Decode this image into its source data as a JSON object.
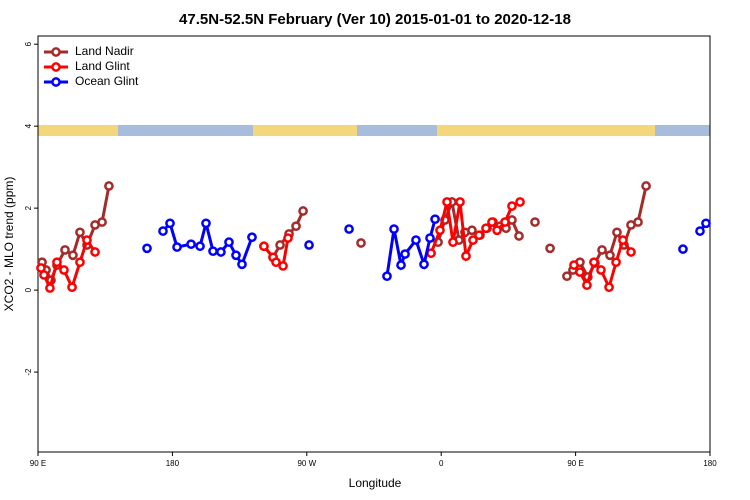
{
  "chart_data": {
    "type": "line",
    "title": "47.5N-52.5N February (Ver 10)   2015-01-01 to 2020-12-18",
    "x_label": "Longitude",
    "y_label": "XCO2 - MLO trend (ppm)",
    "xlim": [
      90,
      540
    ],
    "ylim": [
      -3.95,
      6.2
    ],
    "xticks": [
      {
        "value": 90,
        "label": "90 E"
      },
      {
        "value": 180,
        "label": "180"
      },
      {
        "value": 270,
        "label": "90 W"
      },
      {
        "value": 360,
        "label": "0"
      },
      {
        "value": 450,
        "label": "90 E"
      },
      {
        "value": 540,
        "label": "180"
      }
    ],
    "yticks": [
      -2,
      0,
      2,
      4,
      6
    ],
    "legend": "top-left",
    "series": [
      {
        "name": "Land Nadir",
        "color": "#a52a2a",
        "x": [
          92.7,
          95.4,
          98.7,
          102.7,
          108.1,
          113.4,
          118.1,
          122.8,
          128.2,
          132.9,
          137.5,
          null,
          241.3,
          247.4,
          252.1,
          258.1,
          262.8,
          267.5,
          null,
          306.3,
          null,
          357.9,
          362.5,
          367.2,
          371.9,
          375.9,
          380.6,
          386,
          390.7,
          394.7,
          399.4,
          403.4,
          407.4,
          412.1,
          null,
          422.8,
          null,
          432.9,
          null,
          444.2,
          448.2,
          452.9,
          458.2,
          463,
          467.7,
          473,
          477.7,
          482.4,
          487.1,
          491.8,
          497.2
        ],
        "values": [
          0.68,
          0.49,
          0.24,
          0.61,
          0.98,
          0.85,
          1.41,
          1.1,
          1.59,
          1.66,
          2.54,
          null,
          1.07,
          0.8,
          1.1,
          1.37,
          1.56,
          1.93,
          null,
          1.15,
          null,
          1.17,
          1.71,
          2.15,
          1.22,
          1.41,
          1.46,
          1.34,
          1.51,
          1.66,
          1.56,
          1.51,
          1.71,
          1.32,
          null,
          1.66,
          null,
          1.02,
          null,
          0.34,
          0.49,
          0.68,
          0.32,
          0.66,
          0.98,
          0.85,
          1.41,
          1.1,
          1.59,
          1.66,
          2.54
        ]
      },
      {
        "name": "Land Glint",
        "color": "#ff0000",
        "x": [
          92,
          94,
          98,
          102.7,
          107.4,
          112.8,
          118.1,
          122.8,
          128.2,
          null,
          241.3,
          247.4,
          249.4,
          254.1,
          257.4,
          null,
          353.2,
          359.2,
          363.9,
          367.9,
          372.6,
          376.6,
          381.3,
          385.3,
          390,
          394,
          397.4,
          402.7,
          407.4,
          412.8,
          null,
          448.9,
          452.9,
          457.6,
          462.3,
          467,
          472.4,
          477.1,
          481.7,
          487.1
        ],
        "values": [
          0.54,
          0.37,
          0.05,
          0.68,
          0.49,
          0.07,
          0.68,
          1.22,
          0.93,
          null,
          1.07,
          0.8,
          0.68,
          0.59,
          1.27,
          null,
          0.9,
          1.46,
          2.15,
          1.17,
          2.15,
          0.83,
          1.22,
          1.34,
          1.51,
          1.66,
          1.46,
          1.66,
          2.05,
          2.15,
          null,
          0.61,
          0.44,
          0.12,
          0.68,
          0.49,
          0.07,
          0.68,
          1.22,
          0.93
        ]
      },
      {
        "name": "Ocean Glint",
        "color": "#0000ff",
        "x": [
          163,
          null,
          173.7,
          178.4,
          183.1,
          192.5,
          198.5,
          202.5,
          207.2,
          212.5,
          217.9,
          222.6,
          226.6,
          233.3,
          null,
          271.5,
          null,
          298.3,
          null,
          323.7,
          328.4,
          333.1,
          335.8,
          343.1,
          348.5,
          352.5,
          355.9,
          null,
          521.9,
          null,
          533.3,
          537.3
        ],
        "values": [
          1.02,
          null,
          1.44,
          1.63,
          1.05,
          1.12,
          1.07,
          1.63,
          0.95,
          0.93,
          1.17,
          0.85,
          0.63,
          1.29,
          null,
          1.1,
          null,
          1.49,
          null,
          0.34,
          1.49,
          0.61,
          0.88,
          1.22,
          0.63,
          1.27,
          1.73,
          null,
          1.0,
          null,
          1.44,
          1.63
        ]
      }
    ]
  }
}
